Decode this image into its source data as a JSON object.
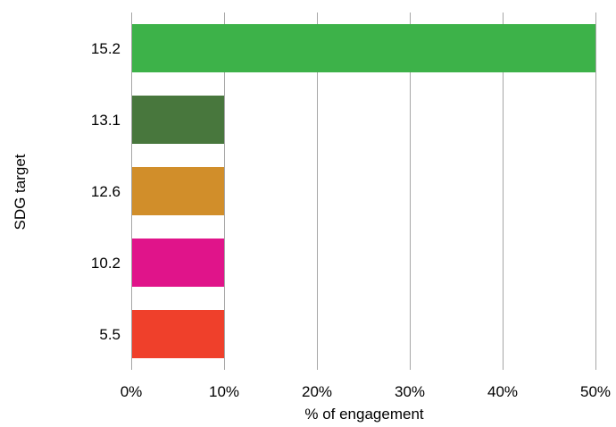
{
  "chart_data": {
    "type": "bar",
    "orientation": "horizontal",
    "title": "",
    "xlabel": "% of engagement",
    "ylabel": "SDG target",
    "categories": [
      "15.2",
      "13.1",
      "12.6",
      "10.2",
      "5.5"
    ],
    "values": [
      50,
      10,
      10,
      10,
      10
    ],
    "colors": [
      "#3db249",
      "#48773d",
      "#d18e2a",
      "#e0148a",
      "#ef402b"
    ],
    "xlim": [
      0,
      50
    ],
    "x_ticks": [
      0,
      10,
      20,
      30,
      40,
      50
    ],
    "x_tick_labels": [
      "0%",
      "10%",
      "20%",
      "30%",
      "40%",
      "50%"
    ],
    "grid": "vertical",
    "legend": "none"
  }
}
